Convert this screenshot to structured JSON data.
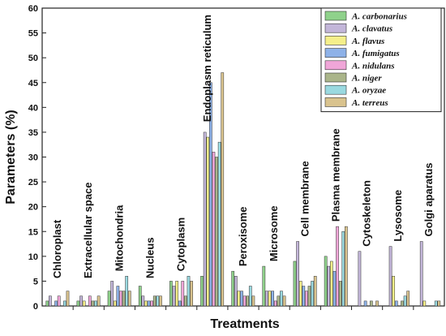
{
  "chart_data": {
    "type": "bar",
    "title": "",
    "xlabel": "Treatments",
    "ylabel": "Parameters (%)",
    "ylim": [
      0,
      60
    ],
    "yticks": [
      "0",
      "5",
      "10",
      "15",
      "20",
      "25",
      "30",
      "35",
      "40",
      "45",
      "50",
      "55",
      "60"
    ],
    "grid": false,
    "legend_position": "top-right",
    "categories": [
      "Chloroplast",
      "Extracellular space",
      "Mitochondria",
      "Nucleus",
      "Cytoplasm",
      "Endoplasm reticulum",
      "Peroxisome",
      "Microsome",
      "Cell membrane",
      "Plasma membrane",
      "Cytoskeleton",
      "Lysosome",
      "Golgi aparatus"
    ],
    "series": [
      {
        "name": "A. carbonarius",
        "color": "#8fd18b",
        "values": [
          1,
          1,
          3,
          4,
          5,
          6,
          7,
          8,
          9,
          10,
          0,
          0,
          0
        ]
      },
      {
        "name": "A. clavatus",
        "color": "#c3b6d9",
        "values": [
          2,
          2,
          5,
          2,
          4,
          35,
          6,
          3,
          13,
          8,
          11,
          12,
          13
        ]
      },
      {
        "name": "A. flavus",
        "color": "#f5ef8a",
        "values": [
          0,
          1,
          1,
          1,
          5,
          34,
          3,
          3,
          5,
          9,
          0,
          6,
          1
        ]
      },
      {
        "name": "A. fumigatus",
        "color": "#8eb2e8",
        "values": [
          1,
          0,
          4,
          1,
          1,
          45,
          3,
          3,
          4,
          7,
          1,
          1,
          0
        ]
      },
      {
        "name": "A. nidulans",
        "color": "#f0a6d8",
        "values": [
          2,
          2,
          3,
          1,
          5,
          31,
          2,
          1,
          3,
          16,
          0,
          0,
          0
        ]
      },
      {
        "name": "A. niger",
        "color": "#aab58a",
        "values": [
          0,
          1,
          3,
          2,
          2,
          30,
          2,
          2,
          4,
          5,
          1,
          1,
          0
        ]
      },
      {
        "name": "A. oryzae",
        "color": "#9ad9e0",
        "values": [
          1,
          1,
          6,
          2,
          6,
          33,
          4,
          3,
          5,
          15,
          0,
          2,
          1
        ]
      },
      {
        "name": "A. terreus",
        "color": "#d9c38e",
        "values": [
          3,
          2,
          3,
          2,
          5,
          47,
          2,
          2,
          6,
          16,
          1,
          3,
          1
        ]
      }
    ]
  }
}
